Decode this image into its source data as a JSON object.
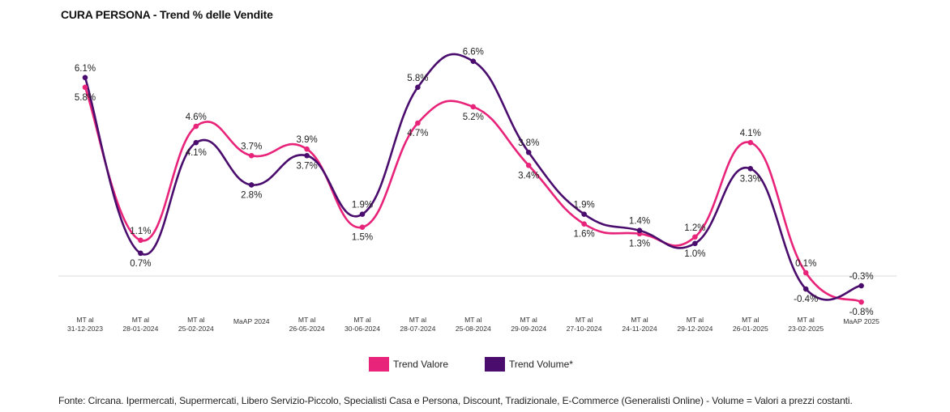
{
  "chart_data": {
    "type": "line",
    "title": "CURA PERSONA - Trend % delle Vendite",
    "categories": [
      [
        "MT al",
        "31-12-2023"
      ],
      [
        "MT al",
        "28-01-2024"
      ],
      [
        "MT al",
        "25-02-2024"
      ],
      [
        "MaAP 2024"
      ],
      [
        "MT al",
        "26-05-2024"
      ],
      [
        "MT al",
        "30-06-2024"
      ],
      [
        "MT al",
        "28-07-2024"
      ],
      [
        "MT al",
        "25-08-2024"
      ],
      [
        "MT al",
        "29-09-2024"
      ],
      [
        "MT al",
        "27-10-2024"
      ],
      [
        "MT al",
        "24-11-2024"
      ],
      [
        "MT al",
        "29-12-2024"
      ],
      [
        "MT al",
        "26-01-2025"
      ],
      [
        "MT al",
        "23-02-2025"
      ],
      [
        "MaAP 2025"
      ]
    ],
    "series": [
      {
        "name": "Trend Valore",
        "color": "#e8237a",
        "values": [
          5.8,
          1.1,
          4.6,
          3.7,
          3.9,
          1.5,
          4.7,
          5.2,
          3.4,
          1.6,
          1.3,
          1.2,
          4.1,
          0.1,
          -0.8
        ],
        "labels": [
          "5.8%",
          "1.1%",
          "4.6%",
          "3.7%",
          "3.9%",
          "1.5%",
          "4.7%",
          "5.2%",
          "3.4%",
          "1.6%",
          "1.3%",
          "1.2%",
          "4.1%",
          "0.1%",
          "-0.8%"
        ]
      },
      {
        "name": "Trend Volume*",
        "color": "#4a0d6e",
        "values": [
          6.1,
          0.7,
          4.1,
          2.8,
          3.7,
          1.9,
          5.8,
          6.6,
          3.8,
          1.9,
          1.4,
          1.0,
          3.3,
          -0.4,
          -0.3
        ],
        "labels": [
          "6.1%",
          "0.7%",
          "4.1%",
          "2.8%",
          "3.7%",
          "1.9%",
          "5.8%",
          "6.6%",
          "3.8%",
          "1.9%",
          "1.4%",
          "1.0%",
          "3.3%",
          "-0.4%",
          "-0.3%"
        ]
      }
    ],
    "ylim": [
      -1.0,
      7.5
    ],
    "grid": false,
    "legend_position": "bottom"
  },
  "footnote": "Fonte: Circana. Ipermercati, Supermercati, Libero Servizio-Piccolo, Specialisti Casa e Persona, Discount, Tradizionale, E-Commerce (Generalisti Online) - Volume = Valori a prezzi costanti."
}
